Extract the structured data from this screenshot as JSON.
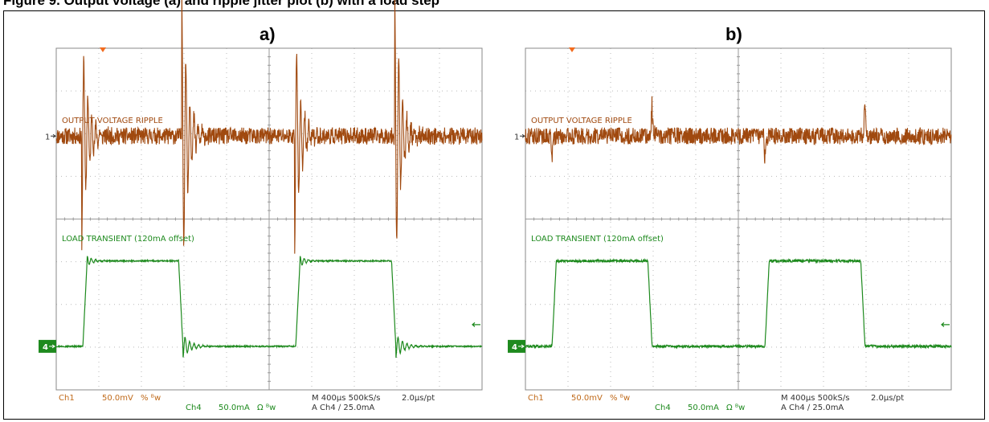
{
  "caption": "Figure 9. Output voltage (a) and ripple jitter plot (b) with a load step",
  "colors": {
    "ch1": "#A0490F",
    "ch4": "#1E8A1E",
    "scale": "#C06A1A",
    "grid": "#b9b9b9",
    "trigger": "#F26B1D"
  },
  "panels": [
    {
      "label": "a)",
      "ch1_label": "OUTPUT VOLTAGE RIPPLE",
      "ch4_label": "LOAD TRANSIENT (120mA offset)",
      "ch1_marker": "1",
      "ch4_marker": "4",
      "scale": {
        "ch1": "Ch1",
        "ch1_value": "50.0mV",
        "ch1_glyphs": "% ᴮw",
        "ch4": "Ch4",
        "ch4_value": "50.0mA",
        "ch4_glyphs": "Ω ᴮw",
        "timebase": "M 400µs 500kS/s",
        "pt": "2.0µs/pt",
        "trigger": "A  Ch4  ∕  25.0mA"
      }
    },
    {
      "label": "b)",
      "ch1_label": "OUTPUT VOLTAGE RIPPLE",
      "ch4_label": "LOAD TRANSIENT (120mA offset)",
      "ch1_marker": "1",
      "ch4_marker": "4",
      "scale": {
        "ch1": "Ch1",
        "ch1_value": "50.0mV",
        "ch1_glyphs": "% ᴮw",
        "ch4": "Ch4",
        "ch4_value": "50.0mA",
        "ch4_glyphs": "Ω ᴮw",
        "timebase": "M 400µs 500kS/s",
        "pt": "2.0µs/pt",
        "trigger": "A  Ch4  ∕  25.0mA"
      }
    }
  ],
  "chart_data": [
    {
      "type": "line",
      "panel": "a",
      "x_unit": "µs",
      "x_per_div": 400,
      "x_range": [
        0,
        4000
      ],
      "series": [
        {
          "name": "OUTPUT VOLTAGE RIPPLE",
          "unit": "mV",
          "per_div": 50,
          "baseline": 0,
          "noise_pp": 20,
          "ring_events": [
            {
              "t": 240,
              "amplitude": -130,
              "ringing": true
            },
            {
              "t": 1180,
              "amplitude": 170,
              "ringing": true
            },
            {
              "t": 2240,
              "amplitude": -130,
              "ringing": true
            },
            {
              "t": 3180,
              "amplitude": 170,
              "ringing": true
            }
          ]
        },
        {
          "name": "LOAD TRANSIENT (120mA offset)",
          "unit": "mA",
          "per_div": 50,
          "low": 0,
          "high": 100,
          "pulses": [
            {
              "start": 250,
              "end": 1150
            },
            {
              "start": 2250,
              "end": 3150
            }
          ],
          "rise_time": 40,
          "ringing": true
        }
      ]
    },
    {
      "type": "line",
      "panel": "b",
      "x_unit": "µs",
      "x_per_div": 400,
      "x_range": [
        0,
        4000
      ],
      "series": [
        {
          "name": "OUTPUT VOLTAGE RIPPLE",
          "unit": "mV",
          "per_div": 50,
          "baseline": 0,
          "noise_pp": 20,
          "ring_events": [
            {
              "t": 240,
              "amplitude": -70,
              "ringing": false
            },
            {
              "t": 1180,
              "amplitude": 90,
              "ringing": false
            },
            {
              "t": 2240,
              "amplitude": -70,
              "ringing": false
            },
            {
              "t": 3180,
              "amplitude": 90,
              "ringing": false
            }
          ]
        },
        {
          "name": "LOAD TRANSIENT (120mA offset)",
          "unit": "mA",
          "per_div": 50,
          "low": 0,
          "high": 100,
          "pulses": [
            {
              "start": 250,
              "end": 1150
            },
            {
              "start": 2250,
              "end": 3150
            }
          ],
          "rise_time": 40,
          "ringing": false
        }
      ]
    }
  ]
}
